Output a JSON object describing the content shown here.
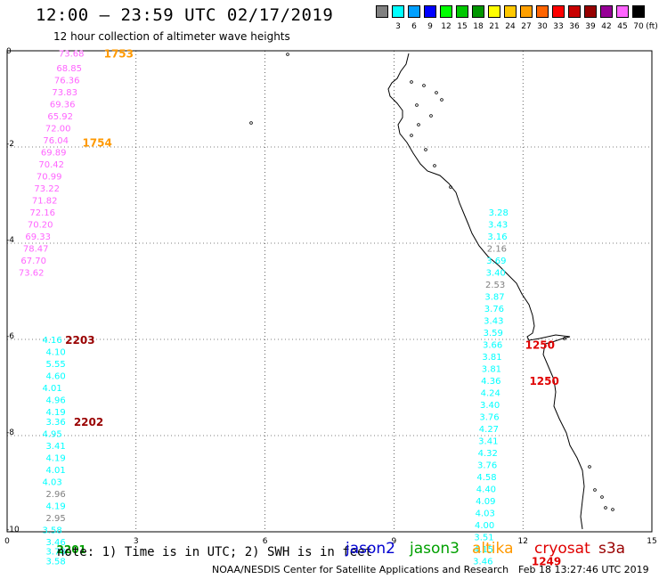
{
  "header": {
    "title": "12:00 – 23:59 UTC 02/17/2019",
    "subtitle": "12 hour collection of altimeter wave heights"
  },
  "scale": {
    "unit": "(ft)",
    "bins": [
      {
        "color": "#808080",
        "label": ""
      },
      {
        "color": "#00ffff",
        "label": "3"
      },
      {
        "color": "#00a0ff",
        "label": "6"
      },
      {
        "color": "#0000ff",
        "label": "9"
      },
      {
        "color": "#00ff00",
        "label": "12"
      },
      {
        "color": "#00c800",
        "label": "15"
      },
      {
        "color": "#009600",
        "label": "18"
      },
      {
        "color": "#ffff00",
        "label": "21"
      },
      {
        "color": "#ffc800",
        "label": "24"
      },
      {
        "color": "#ffa000",
        "label": "27"
      },
      {
        "color": "#ff6400",
        "label": "30"
      },
      {
        "color": "#ff0000",
        "label": "33"
      },
      {
        "color": "#c80000",
        "label": "36"
      },
      {
        "color": "#960000",
        "label": "39"
      },
      {
        "color": "#960096",
        "label": "42"
      },
      {
        "color": "#ff64ff",
        "label": "45"
      },
      {
        "color": "#000000",
        "label": "70"
      }
    ]
  },
  "footer": {
    "note": "note: 1) Time is in UTC; 2) SWH is in feet",
    "satellites": [
      {
        "name": "jason2",
        "color": "#0000d0"
      },
      {
        "name": "jason3",
        "color": "#00a000"
      },
      {
        "name": "altika",
        "color": "#ff9900"
      },
      {
        "name": "cryosat",
        "color": "#e00000"
      },
      {
        "name": "s3a",
        "color": "#990000"
      }
    ],
    "credit": "NOAA/NESDIS Center for Satellite Applications and Research",
    "generated": "Feb 18 13:27:46 UTC 2019"
  },
  "chart_data": {
    "type": "scatter",
    "title": "12:00 – 23:59 UTC 02/17/2019",
    "xlim": [
      0,
      15
    ],
    "ylim": [
      -10,
      0
    ],
    "xticks": [
      "0",
      "3",
      "6",
      "9",
      "12",
      "15"
    ],
    "yticks": [
      "0",
      "-2",
      "-4",
      "-6",
      "-8",
      "-10"
    ],
    "grid": true,
    "series": [
      {
        "name": "altika",
        "track_x": 1.2,
        "color": "#ff64ff",
        "points": [
          {
            "y": -0.05,
            "v": "73.68"
          },
          {
            "y": -0.35,
            "v": "68.85"
          },
          {
            "y": -0.6,
            "v": "76.36"
          },
          {
            "y": -0.85,
            "v": "73.83"
          },
          {
            "y": -1.1,
            "v": "69.36"
          },
          {
            "y": -1.35,
            "v": "65.92"
          },
          {
            "y": -1.6,
            "v": "72.00"
          },
          {
            "y": -1.85,
            "v": "76.04"
          },
          {
            "y": -2.1,
            "v": "69.89"
          },
          {
            "y": -2.35,
            "v": "70.42"
          },
          {
            "y": -2.6,
            "v": "70.99"
          },
          {
            "y": -2.85,
            "v": "73.22"
          },
          {
            "y": -3.1,
            "v": "71.82"
          },
          {
            "y": -3.35,
            "v": "72.16"
          },
          {
            "y": -3.6,
            "v": "70.20"
          },
          {
            "y": -3.85,
            "v": "69.33"
          },
          {
            "y": -4.1,
            "v": "78.47"
          },
          {
            "y": -4.35,
            "v": "67.70"
          },
          {
            "y": -4.6,
            "v": "73.62"
          }
        ]
      },
      {
        "name": "s3a",
        "track_x": 0.9,
        "color": "#00ffff",
        "points": [
          {
            "y": -6.0,
            "v": "4.16"
          },
          {
            "y": -6.25,
            "v": "4.10"
          },
          {
            "y": -6.5,
            "v": "5.55"
          },
          {
            "y": -6.75,
            "v": "4.60"
          },
          {
            "y": -7.0,
            "v": "4.01"
          },
          {
            "y": -7.25,
            "v": "4.96"
          },
          {
            "y": -7.5,
            "v": "4.19"
          },
          {
            "y": -7.7,
            "v": "3.36"
          },
          {
            "y": -7.95,
            "v": "4.95"
          },
          {
            "y": -8.2,
            "v": "3.41"
          },
          {
            "y": -8.45,
            "v": "4.19"
          },
          {
            "y": -8.7,
            "v": "4.01"
          },
          {
            "y": -8.95,
            "v": "4.03"
          },
          {
            "y": -9.2,
            "v": "2.96"
          },
          {
            "y": -9.45,
            "v": "4.19"
          },
          {
            "y": -9.7,
            "v": "2.95"
          },
          {
            "y": -9.95,
            "v": "3.58"
          },
          {
            "y": -10.2,
            "v": "3.46"
          },
          {
            "y": -10.4,
            "v": "3.78"
          },
          {
            "y": -10.6,
            "v": "3.58"
          }
        ]
      },
      {
        "name": "jason3",
        "track_x": 11.2,
        "color": "#00ffff",
        "points": [
          {
            "y": -3.35,
            "v": "3.28"
          },
          {
            "y": -3.6,
            "v": "3.43"
          },
          {
            "y": -3.85,
            "v": "3.16"
          },
          {
            "y": -4.1,
            "v": "2.16"
          },
          {
            "y": -4.35,
            "v": "3.69"
          },
          {
            "y": -4.6,
            "v": "3.40"
          },
          {
            "y": -4.85,
            "v": "2.53"
          },
          {
            "y": -5.1,
            "v": "3.87"
          },
          {
            "y": -5.35,
            "v": "3.76"
          },
          {
            "y": -5.6,
            "v": "3.43"
          },
          {
            "y": -5.85,
            "v": "3.59"
          },
          {
            "y": -6.1,
            "v": "3.66"
          },
          {
            "y": -6.35,
            "v": "3.81"
          },
          {
            "y": -6.6,
            "v": "3.81"
          },
          {
            "y": -6.85,
            "v": "4.36"
          },
          {
            "y": -7.1,
            "v": "4.24"
          },
          {
            "y": -7.35,
            "v": "3.40"
          },
          {
            "y": -7.6,
            "v": "3.76"
          },
          {
            "y": -7.85,
            "v": "4.27"
          },
          {
            "y": -8.1,
            "v": "3.41"
          },
          {
            "y": -8.35,
            "v": "4.32"
          },
          {
            "y": -8.6,
            "v": "3.76"
          },
          {
            "y": -8.85,
            "v": "4.58"
          },
          {
            "y": -9.1,
            "v": "4.40"
          },
          {
            "y": -9.35,
            "v": "4.09"
          },
          {
            "y": -9.6,
            "v": "4.03"
          },
          {
            "y": -9.85,
            "v": "4.00"
          },
          {
            "y": -10.1,
            "v": "3.51"
          },
          {
            "y": -10.35,
            "v": "4.15"
          },
          {
            "y": -10.6,
            "v": "3.46"
          }
        ]
      }
    ],
    "time_labels": [
      {
        "text": "1753",
        "x": 2.25,
        "y": -0.05,
        "color": "#ff9900"
      },
      {
        "text": "1754",
        "x": 1.75,
        "y": -1.9,
        "color": "#ff9900"
      },
      {
        "text": "2203",
        "x": 1.35,
        "y": -6.0,
        "color": "#990000"
      },
      {
        "text": "2202",
        "x": 1.55,
        "y": -7.7,
        "color": "#990000"
      },
      {
        "text": "2201",
        "x": 1.15,
        "y": -10.35,
        "color": "#00a000"
      },
      {
        "text": "1250",
        "x": 12.05,
        "y": -6.1,
        "color": "#e00000"
      },
      {
        "text": "1250",
        "x": 12.15,
        "y": -6.85,
        "color": "#e00000"
      },
      {
        "text": "1249",
        "x": 12.2,
        "y": -10.6,
        "color": "#e00000"
      }
    ]
  }
}
